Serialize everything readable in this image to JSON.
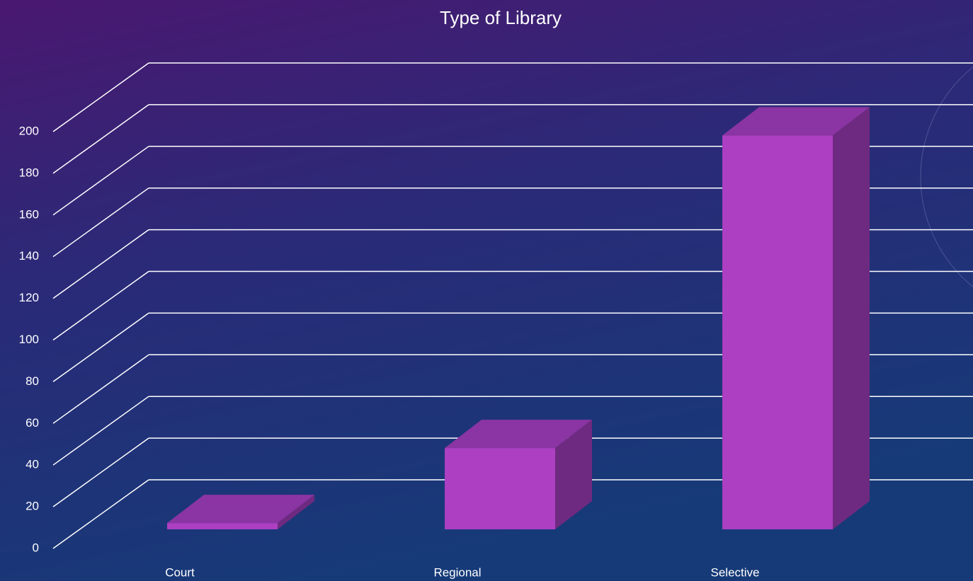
{
  "chart_data": {
    "type": "bar3d",
    "title": "Type of Library",
    "categories": [
      "Court",
      "Regional",
      "Selective"
    ],
    "values": [
      3,
      39,
      189
    ],
    "color": "#ac3fc2",
    "ylim": [
      0,
      200
    ],
    "yticks": [
      0,
      20,
      40,
      60,
      80,
      100,
      120,
      140,
      160,
      180,
      200
    ],
    "grid": true
  }
}
